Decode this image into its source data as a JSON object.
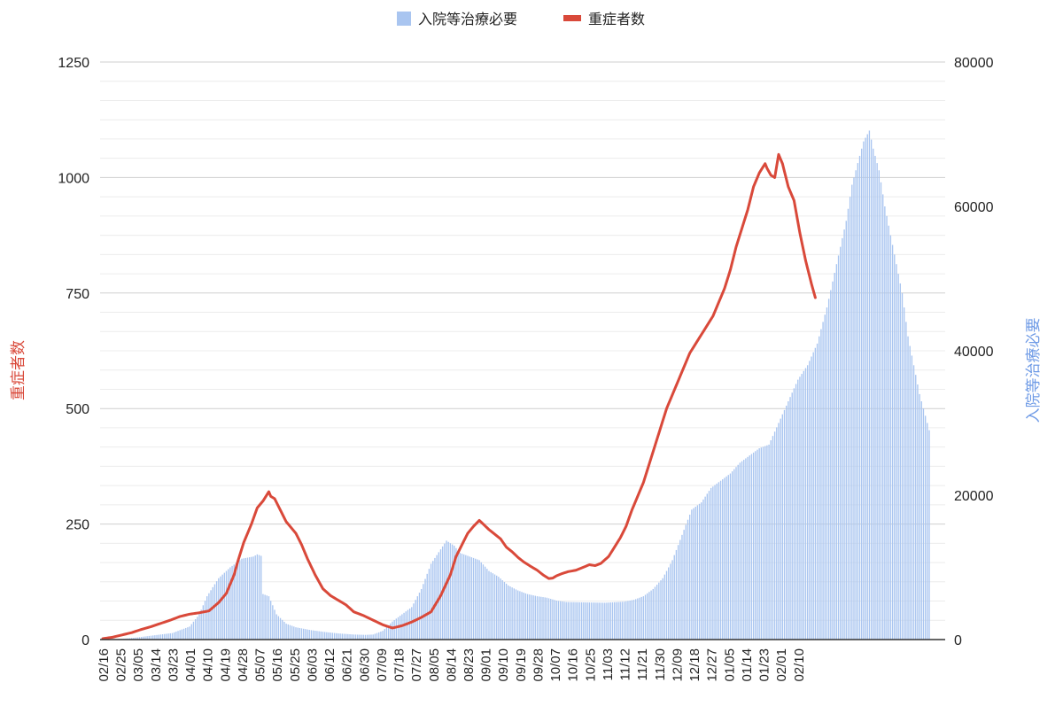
{
  "chart_data": {
    "type": "bar+line",
    "legend": {
      "position": "top",
      "items": [
        {
          "name": "入院等治療必要",
          "kind": "bar",
          "color": "#a9c5f0"
        },
        {
          "name": "重症者数",
          "kind": "line",
          "color": "#d9493a"
        }
      ]
    },
    "y_left": {
      "title": "重症者数",
      "title_color": "#d9493a",
      "min": 0,
      "max": 1250,
      "ticks": [
        0,
        250,
        500,
        750,
        1000,
        1250
      ],
      "tick_labels": [
        "0",
        "250",
        "500",
        "750",
        "1000",
        "1250"
      ]
    },
    "y_right": {
      "title": "入院等治療必要",
      "title_color": "#6f9be6",
      "min": 0,
      "max": 80000,
      "ticks": [
        0,
        20000,
        40000,
        60000,
        80000
      ],
      "tick_labels": [
        "0",
        "20000",
        "40000",
        "60000",
        "80000"
      ]
    },
    "x_tick_labels": [
      "02/16",
      "02/25",
      "03/05",
      "03/14",
      "03/23",
      "04/01",
      "04/10",
      "04/19",
      "04/28",
      "05/07",
      "05/16",
      "05/25",
      "06/03",
      "06/12",
      "06/21",
      "06/30",
      "07/09",
      "07/18",
      "07/27",
      "08/05",
      "08/14",
      "08/23",
      "09/01",
      "09/10",
      "09/19",
      "09/28",
      "10/07",
      "10/16",
      "10/25",
      "11/03",
      "11/12",
      "11/21",
      "11/30",
      "12/09",
      "12/18",
      "12/27",
      "01/05",
      "01/14",
      "01/23",
      "02/01",
      "02/10"
    ],
    "grid": true,
    "days": 360,
    "series": [
      {
        "name": "入院等治療必要",
        "axis": "right",
        "type": "bar",
        "points": [
          [
            0,
            0
          ],
          [
            10,
            100
          ],
          [
            18,
            300
          ],
          [
            27,
            600
          ],
          [
            36,
            900
          ],
          [
            45,
            1800
          ],
          [
            50,
            3500
          ],
          [
            54,
            6000
          ],
          [
            60,
            8500
          ],
          [
            66,
            10000
          ],
          [
            72,
            11200
          ],
          [
            78,
            11500
          ],
          [
            80,
            11800
          ],
          [
            82,
            11600
          ],
          [
            83,
            6300
          ],
          [
            86,
            6000
          ],
          [
            90,
            3500
          ],
          [
            95,
            2200
          ],
          [
            100,
            1700
          ],
          [
            108,
            1300
          ],
          [
            115,
            1050
          ],
          [
            122,
            850
          ],
          [
            130,
            700
          ],
          [
            136,
            650
          ],
          [
            140,
            700
          ],
          [
            145,
            1200
          ],
          [
            150,
            2500
          ],
          [
            155,
            3500
          ],
          [
            160,
            4500
          ],
          [
            165,
            7000
          ],
          [
            170,
            10500
          ],
          [
            175,
            12500
          ],
          [
            178,
            13700
          ],
          [
            182,
            13000
          ],
          [
            185,
            12000
          ],
          [
            190,
            11500
          ],
          [
            195,
            11000
          ],
          [
            200,
            9500
          ],
          [
            205,
            8700
          ],
          [
            210,
            7500
          ],
          [
            215,
            6800
          ],
          [
            220,
            6300
          ],
          [
            225,
            6000
          ],
          [
            230,
            5800
          ],
          [
            235,
            5400
          ],
          [
            240,
            5200
          ],
          [
            250,
            5150
          ],
          [
            260,
            5100
          ],
          [
            270,
            5250
          ],
          [
            275,
            5500
          ],
          [
            280,
            6000
          ],
          [
            285,
            7000
          ],
          [
            290,
            8500
          ],
          [
            295,
            11000
          ],
          [
            300,
            14500
          ],
          [
            305,
            18000
          ],
          [
            310,
            19000
          ],
          [
            315,
            21000
          ],
          [
            320,
            22000
          ],
          [
            325,
            23000
          ],
          [
            330,
            24500
          ],
          [
            335,
            25500
          ],
          [
            340,
            26500
          ],
          [
            345,
            27000
          ],
          [
            350,
            30000
          ],
          [
            355,
            33000
          ],
          [
            360,
            36000
          ],
          [
            365,
            38000
          ],
          [
            370,
            41000
          ],
          [
            375,
            46000
          ],
          [
            380,
            52000
          ],
          [
            385,
            58000
          ],
          [
            388,
            63000
          ],
          [
            391,
            66000
          ],
          [
            394,
            69000
          ],
          [
            397,
            70500
          ],
          [
            399,
            68000
          ],
          [
            402,
            65000
          ],
          [
            405,
            60000
          ],
          [
            408,
            56000
          ],
          [
            411,
            52000
          ],
          [
            414,
            48000
          ],
          [
            417,
            42000
          ],
          [
            420,
            38000
          ],
          [
            423,
            34000
          ],
          [
            426,
            31000
          ],
          [
            428,
            29000
          ]
        ],
        "values_note": "daily values interpolated between the listed [day_index, value] points"
      },
      {
        "name": "重症者数",
        "axis": "left",
        "type": "line",
        "points": [
          [
            0,
            2
          ],
          [
            5,
            5
          ],
          [
            10,
            10
          ],
          [
            15,
            15
          ],
          [
            20,
            22
          ],
          [
            25,
            28
          ],
          [
            30,
            35
          ],
          [
            35,
            42
          ],
          [
            40,
            50
          ],
          [
            45,
            55
          ],
          [
            50,
            58
          ],
          [
            55,
            62
          ],
          [
            60,
            80
          ],
          [
            64,
            100
          ],
          [
            68,
            140
          ],
          [
            70,
            170
          ],
          [
            73,
            210
          ],
          [
            77,
            250
          ],
          [
            80,
            285
          ],
          [
            83,
            300
          ],
          [
            86,
            320
          ],
          [
            87,
            310
          ],
          [
            89,
            305
          ],
          [
            92,
            280
          ],
          [
            95,
            255
          ],
          [
            97,
            245
          ],
          [
            100,
            230
          ],
          [
            103,
            205
          ],
          [
            106,
            175
          ],
          [
            110,
            140
          ],
          [
            114,
            110
          ],
          [
            118,
            95
          ],
          [
            122,
            85
          ],
          [
            126,
            75
          ],
          [
            130,
            60
          ],
          [
            135,
            52
          ],
          [
            140,
            42
          ],
          [
            145,
            32
          ],
          [
            150,
            25
          ],
          [
            155,
            30
          ],
          [
            160,
            38
          ],
          [
            165,
            48
          ],
          [
            170,
            60
          ],
          [
            175,
            95
          ],
          [
            180,
            140
          ],
          [
            183,
            180
          ],
          [
            186,
            205
          ],
          [
            189,
            230
          ],
          [
            192,
            245
          ],
          [
            195,
            258
          ],
          [
            197,
            250
          ],
          [
            200,
            238
          ],
          [
            203,
            228
          ],
          [
            206,
            218
          ],
          [
            209,
            200
          ],
          [
            212,
            190
          ],
          [
            215,
            178
          ],
          [
            218,
            168
          ],
          [
            221,
            160
          ],
          [
            225,
            150
          ],
          [
            228,
            140
          ],
          [
            231,
            132
          ],
          [
            233,
            133
          ],
          [
            235,
            138
          ],
          [
            238,
            143
          ],
          [
            241,
            147
          ],
          [
            245,
            150
          ],
          [
            248,
            155
          ],
          [
            252,
            162
          ],
          [
            255,
            160
          ],
          [
            258,
            165
          ],
          [
            262,
            180
          ],
          [
            265,
            200
          ],
          [
            268,
            220
          ],
          [
            271,
            245
          ],
          [
            274,
            280
          ],
          [
            277,
            310
          ],
          [
            280,
            340
          ],
          [
            283,
            380
          ],
          [
            286,
            420
          ],
          [
            289,
            460
          ],
          [
            292,
            500
          ],
          [
            295,
            530
          ],
          [
            298,
            560
          ],
          [
            301,
            590
          ],
          [
            304,
            620
          ],
          [
            307,
            640
          ],
          [
            310,
            660
          ],
          [
            313,
            680
          ],
          [
            316,
            700
          ],
          [
            319,
            730
          ],
          [
            322,
            760
          ],
          [
            325,
            800
          ],
          [
            328,
            850
          ],
          [
            331,
            890
          ],
          [
            334,
            930
          ],
          [
            337,
            980
          ],
          [
            340,
            1010
          ],
          [
            343,
            1030
          ],
          [
            344,
            1020
          ],
          [
            346,
            1005
          ],
          [
            348,
            1000
          ],
          [
            350,
            1050
          ],
          [
            352,
            1030
          ],
          [
            355,
            980
          ],
          [
            358,
            950
          ],
          [
            361,
            880
          ],
          [
            364,
            820
          ],
          [
            367,
            770
          ],
          [
            369,
            740
          ]
        ]
      }
    ]
  }
}
